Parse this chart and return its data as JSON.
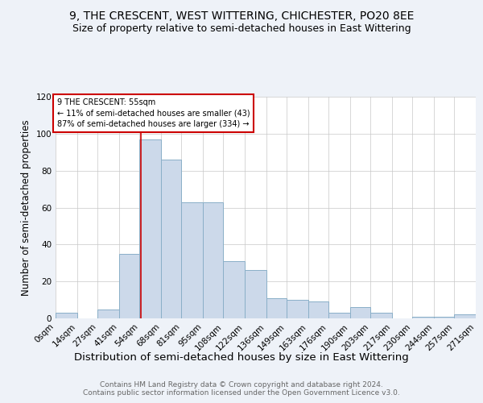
{
  "title": "9, THE CRESCENT, WEST WITTERING, CHICHESTER, PO20 8EE",
  "subtitle": "Size of property relative to semi-detached houses in East Wittering",
  "xlabel": "Distribution of semi-detached houses by size in East Wittering",
  "ylabel": "Number of semi-detached properties",
  "bin_labels": [
    "0sqm",
    "14sqm",
    "27sqm",
    "41sqm",
    "54sqm",
    "68sqm",
    "81sqm",
    "95sqm",
    "108sqm",
    "122sqm",
    "136sqm",
    "149sqm",
    "163sqm",
    "176sqm",
    "190sqm",
    "203sqm",
    "217sqm",
    "230sqm",
    "244sqm",
    "257sqm",
    "271sqm"
  ],
  "bin_edges": [
    0,
    14,
    27,
    41,
    54,
    68,
    81,
    95,
    108,
    122,
    136,
    149,
    163,
    176,
    190,
    203,
    217,
    230,
    244,
    257,
    271
  ],
  "bar_heights": [
    3,
    0,
    5,
    35,
    97,
    86,
    63,
    63,
    31,
    26,
    11,
    10,
    9,
    3,
    6,
    3,
    0,
    1,
    1,
    2
  ],
  "bar_color": "#ccd9ea",
  "bar_edge_color": "#8aafc8",
  "property_size": 55,
  "red_line_color": "#cc0000",
  "annotation_box_color": "#cc0000",
  "annotation_line1": "9 THE CRESCENT: 55sqm",
  "annotation_line2": "← 11% of semi-detached houses are smaller (43)",
  "annotation_line3": "87% of semi-detached houses are larger (334) →",
  "smaller_pct": "11%",
  "smaller_count": 43,
  "larger_pct": "87%",
  "larger_count": 334,
  "ylim": [
    0,
    120
  ],
  "yticks": [
    0,
    20,
    40,
    60,
    80,
    100,
    120
  ],
  "footer": "Contains HM Land Registry data © Crown copyright and database right 2024.\nContains public sector information licensed under the Open Government Licence v3.0.",
  "background_color": "#eef2f8",
  "plot_background_color": "#ffffff",
  "title_fontsize": 10,
  "subtitle_fontsize": 9,
  "tick_fontsize": 7.5,
  "ylabel_fontsize": 8.5,
  "xlabel_fontsize": 9.5,
  "footer_fontsize": 6.5
}
